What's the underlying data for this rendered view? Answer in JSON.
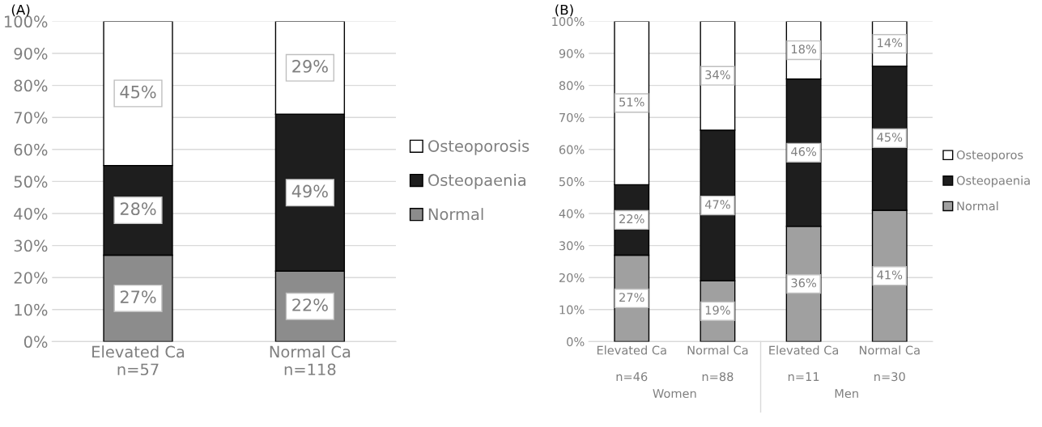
{
  "chart_data": [
    {
      "type": "bar",
      "title": "(A)",
      "stacked": true,
      "categories": [
        "Elevated Ca\nn=57",
        "Normal Ca\nn=118"
      ],
      "series": [
        {
          "name": "Normal",
          "color": "#8c8c8c",
          "values": [
            27,
            22
          ],
          "value_labels": [
            "27%",
            "22%"
          ]
        },
        {
          "name": "Osteopaenia",
          "color": "#1e1e1e",
          "values": [
            28,
            49
          ],
          "value_labels": [
            "28%",
            "49%"
          ]
        },
        {
          "name": "Osteoporosis",
          "color": "#ffffff",
          "values": [
            45,
            29
          ],
          "value_labels": [
            "45%",
            "29%"
          ]
        }
      ],
      "ylim": [
        0,
        100
      ],
      "yticks": [
        {
          "value": 0,
          "label": "0%"
        },
        {
          "value": 10,
          "label": "10%"
        },
        {
          "value": 20,
          "label": "20%"
        },
        {
          "value": 30,
          "label": "30%"
        },
        {
          "value": 40,
          "label": "40%"
        },
        {
          "value": 50,
          "label": "50%"
        },
        {
          "value": 60,
          "label": "60%"
        },
        {
          "value": 70,
          "label": "70%"
        },
        {
          "value": 80,
          "label": "80%"
        },
        {
          "value": 90,
          "label": "90%"
        },
        {
          "value": 100,
          "label": "100%"
        }
      ],
      "grid": "y",
      "legend": "right"
    },
    {
      "type": "bar",
      "title": "(B)",
      "stacked": true,
      "categories": [
        "Elevated Ca\n\nn=46",
        "Normal Ca\n\nn=88",
        "Elevated Ca\n\nn=11",
        "Normal Ca\n\nn=30"
      ],
      "series": [
        {
          "name": "Normal",
          "color": "#a0a0a0",
          "values": [
            27,
            19,
            36,
            41
          ],
          "value_labels": [
            "27%",
            "19%",
            "36%",
            "41%"
          ]
        },
        {
          "name": "Osteopaenia",
          "color": "#1e1e1e",
          "values": [
            22,
            47,
            46,
            45
          ],
          "value_labels": [
            "22%",
            "47%",
            "46%",
            "45%"
          ]
        },
        {
          "name": "Osteoporos",
          "color": "#ffffff",
          "values": [
            51,
            34,
            18,
            14
          ],
          "value_labels": [
            "51%",
            "34%",
            "18%",
            "14%"
          ]
        }
      ],
      "annotations": [
        "Women",
        "Men"
      ],
      "ylim": [
        0,
        100
      ],
      "yticks": [
        {
          "value": 0,
          "label": "0%"
        },
        {
          "value": 10,
          "label": "10%"
        },
        {
          "value": 20,
          "label": "20%"
        },
        {
          "value": 30,
          "label": "30%"
        },
        {
          "value": 40,
          "label": "40%"
        },
        {
          "value": 50,
          "label": "50%"
        },
        {
          "value": 60,
          "label": "60%"
        },
        {
          "value": 70,
          "label": "70%"
        },
        {
          "value": 80,
          "label": "80%"
        },
        {
          "value": 90,
          "label": "90%"
        },
        {
          "value": 100,
          "label": "100%"
        }
      ],
      "grid": "y",
      "legend": "right"
    }
  ]
}
